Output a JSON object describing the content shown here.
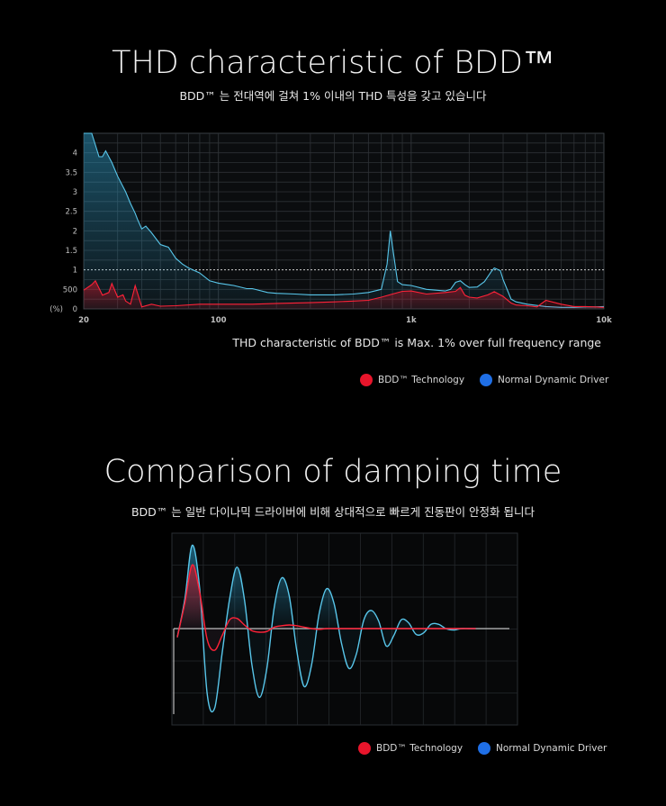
{
  "thd": {
    "title": "THD characteristic of BDD™",
    "subtitle": "BDD™ 는 전대역에 걸쳐 1% 이내의 THD 특성을 갖고 있습니다",
    "caption": "THD characteristic of BDD™ is Max. 1% over full frequency range",
    "legend": {
      "bdd": "BDD™ Technology",
      "normal": "Normal Dynamic Driver"
    }
  },
  "damping": {
    "title": "Comparison of damping time",
    "subtitle": "BDD™ 는 일반 다이나믹 드라이버에 비해 상대적으로 빠르게 진동판이 안정화 됩니다",
    "legend": {
      "bdd": "BDD™ Technology",
      "normal": "Normal Dynamic Driver"
    }
  },
  "colors": {
    "bdd": "#e8152b",
    "normal": "#1f6fe6",
    "normal_line": "#58c6ea",
    "grid": "#2e3236"
  },
  "chart_data": [
    {
      "type": "area",
      "title": "THD characteristic of BDD™",
      "x_scale": "log",
      "xlim": [
        20,
        10000
      ],
      "x_ticks": [
        "20",
        "100",
        "1k",
        "10k"
      ],
      "y_ticks": [
        "(%)",
        "0",
        "500",
        "1",
        "1.5",
        "2",
        "2.5",
        "3",
        "3.5",
        "4"
      ],
      "ylim": [
        0,
        4.5
      ],
      "reference_line": 1,
      "series": [
        {
          "name": "Normal Dynamic Driver",
          "x": [
            20,
            22,
            23,
            24,
            25,
            26,
            28,
            30,
            33,
            35,
            37,
            38,
            40,
            42,
            45,
            50,
            52,
            55,
            60,
            65,
            70,
            80,
            90,
            100,
            120,
            140,
            150,
            180,
            200,
            250,
            300,
            400,
            500,
            600,
            700,
            750,
            780,
            800,
            850,
            900,
            1000,
            1200,
            1500,
            1600,
            1700,
            1800,
            1900,
            2000,
            2200,
            2400,
            2600,
            2700,
            2900,
            3000,
            3300,
            3500,
            4000,
            5000,
            6000,
            7000,
            8000,
            9000,
            10000
          ],
          "values": [
            4.5,
            4.5,
            4.2,
            3.9,
            3.9,
            4.05,
            3.75,
            3.4,
            3.0,
            2.7,
            2.45,
            2.3,
            2.05,
            2.12,
            1.95,
            1.65,
            1.62,
            1.58,
            1.3,
            1.15,
            1.05,
            0.92,
            0.72,
            0.66,
            0.6,
            0.52,
            0.52,
            0.42,
            0.4,
            0.38,
            0.36,
            0.36,
            0.38,
            0.42,
            0.5,
            1.15,
            2.0,
            1.6,
            0.7,
            0.62,
            0.6,
            0.5,
            0.46,
            0.5,
            0.68,
            0.72,
            0.62,
            0.55,
            0.56,
            0.7,
            0.95,
            1.05,
            0.98,
            0.75,
            0.25,
            0.18,
            0.12,
            0.06,
            0.04,
            0.04,
            0.05,
            0.05,
            0.06
          ]
        },
        {
          "name": "BDD™ Technology",
          "x": [
            20,
            22,
            23,
            25,
            27,
            28,
            30,
            32,
            33,
            35,
            37,
            40,
            45,
            50,
            60,
            80,
            100,
            150,
            200,
            300,
            400,
            500,
            600,
            700,
            800,
            900,
            1000,
            1200,
            1500,
            1700,
            1800,
            1900,
            2000,
            2200,
            2500,
            2700,
            3000,
            3300,
            3500,
            4000,
            4500,
            5000,
            6000,
            7000,
            8000,
            9000,
            10000
          ],
          "values": [
            0.48,
            0.62,
            0.72,
            0.35,
            0.42,
            0.65,
            0.3,
            0.36,
            0.2,
            0.12,
            0.6,
            0.05,
            0.12,
            0.07,
            0.08,
            0.12,
            0.12,
            0.12,
            0.14,
            0.16,
            0.18,
            0.2,
            0.22,
            0.3,
            0.38,
            0.45,
            0.46,
            0.38,
            0.42,
            0.45,
            0.55,
            0.35,
            0.3,
            0.28,
            0.36,
            0.44,
            0.32,
            0.15,
            0.1,
            0.08,
            0.05,
            0.22,
            0.12,
            0.06,
            0.06,
            0.05,
            0.04
          ]
        }
      ]
    },
    {
      "type": "line",
      "title": "Comparison of damping time",
      "xlim": [
        0,
        16.5
      ],
      "ylim": [
        -1.25,
        1.25
      ],
      "series": [
        {
          "name": "Normal Dynamic Driver",
          "x": [
            0,
            0.4,
            0.8,
            1.2,
            1.6,
            2.0,
            2.4,
            2.8,
            3.2,
            3.6,
            4.0,
            4.4,
            4.8,
            5.2,
            5.6,
            6.0,
            6.4,
            6.8,
            7.2,
            7.6,
            8.0,
            8.4,
            8.8,
            9.2,
            9.6,
            10.0,
            10.4,
            10.8,
            11.2,
            11.6,
            12.0,
            12.4,
            12.8,
            13.2,
            13.6,
            14.0,
            14.4,
            14.8,
            15.2,
            15.6,
            16.0
          ],
          "values": [
            -0.12,
            0.4,
            1.15,
            0.55,
            -0.9,
            -1.1,
            -0.35,
            0.4,
            0.85,
            0.4,
            -0.5,
            -0.95,
            -0.55,
            0.3,
            0.7,
            0.45,
            -0.3,
            -0.8,
            -0.5,
            0.2,
            0.55,
            0.35,
            -0.2,
            -0.55,
            -0.35,
            0.12,
            0.25,
            0.1,
            -0.24,
            -0.1,
            0.12,
            0.08,
            -0.08,
            -0.06,
            0.06,
            0.06,
            0.0,
            -0.02,
            0.0,
            0.0,
            0.0
          ]
        },
        {
          "name": "BDD™ Technology",
          "x": [
            0,
            0.4,
            0.8,
            1.2,
            1.6,
            2.0,
            2.4,
            2.8,
            3.2,
            3.6,
            4.0,
            4.4,
            4.8,
            5.2,
            5.6,
            6.0,
            6.4,
            6.8,
            7.2,
            7.6,
            8.0,
            8.4,
            8.8,
            9.2,
            9.6,
            10.0,
            11.0,
            12.0,
            13.0,
            14.0,
            15.0,
            16.0
          ],
          "values": [
            -0.12,
            0.35,
            0.88,
            0.5,
            -0.15,
            -0.3,
            -0.1,
            0.12,
            0.14,
            0.05,
            -0.03,
            -0.05,
            -0.04,
            0.02,
            0.04,
            0.05,
            0.04,
            0.02,
            0.0,
            -0.01,
            0.0,
            0.0,
            0.0,
            0.0,
            0.0,
            0.0,
            0.0,
            0.0,
            0.0,
            0.0,
            0.0,
            0.0
          ]
        }
      ]
    }
  ]
}
